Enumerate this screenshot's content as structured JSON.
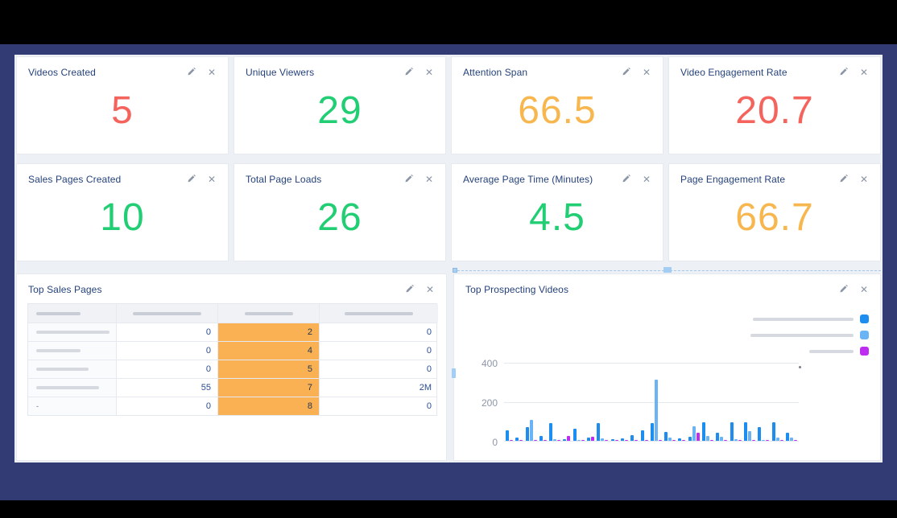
{
  "colors": {
    "red": "#f4635c",
    "green": "#21ce73",
    "orange": "#f7b64e",
    "title_navy": "#25427c",
    "highlight_orange": "#f9b153",
    "bar_blue": "#1d8df0",
    "bar_lightblue": "#6ab4f5",
    "bar_magenta": "#bf2cf1",
    "frame_navy": "#323b73",
    "page_bg": "#edf0f5"
  },
  "metric_cards": [
    {
      "title": "Videos Created",
      "value": "5",
      "value_color": "#f4635c"
    },
    {
      "title": "Unique Viewers",
      "value": "29",
      "value_color": "#21ce73"
    },
    {
      "title": "Attention Span",
      "value": "66.5",
      "value_color": "#f7b64e"
    },
    {
      "title": "Video Engagement Rate",
      "value": "20.7",
      "value_color": "#f4635c"
    },
    {
      "title": "Sales Pages Created",
      "value": "10",
      "value_color": "#21ce73"
    },
    {
      "title": "Total Page Loads",
      "value": "26",
      "value_color": "#21ce73"
    },
    {
      "title": "Average Page Time (Minutes)",
      "value": "4.5",
      "value_color": "#21ce73"
    },
    {
      "title": "Page Engagement Rate",
      "value": "66.7",
      "value_color": "#f7b64e"
    }
  ],
  "table_card": {
    "title": "Top Sales Pages",
    "header_redacted_bar_widths": [
      55,
      85,
      60,
      85
    ],
    "rows": [
      {
        "name_redacted_bar_width": 92,
        "name_text": "",
        "col2": "0",
        "col3": "2",
        "col4": "0"
      },
      {
        "name_redacted_bar_width": 55,
        "name_text": "",
        "col2": "0",
        "col3": "4",
        "col4": "0"
      },
      {
        "name_redacted_bar_width": 65,
        "name_text": "",
        "col2": "0",
        "col3": "5",
        "col4": "0"
      },
      {
        "name_redacted_bar_width": 78,
        "name_text": "",
        "col2": "55",
        "col3": "7",
        "col4": "2M"
      },
      {
        "name_redacted_bar_width": 0,
        "name_text": "-",
        "col2": "0",
        "col3": "8",
        "col4": "0"
      }
    ],
    "highlighted_column_index": 3,
    "highlight_color": "#f9b153"
  },
  "chart_card": {
    "title": "Top Prospecting Videos",
    "legend": [
      {
        "color": "#1d8df0",
        "label_redacted_bar_width": 125
      },
      {
        "color": "#6ab4f5",
        "label_redacted_bar_width": 128
      },
      {
        "color": "#bf2cf1",
        "label_redacted_bar_width": 55
      }
    ],
    "selected": true
  },
  "chart_data": {
    "type": "bar",
    "title": "Top Prospecting Videos",
    "xlabel": "",
    "ylabel": "",
    "ylim": [
      0,
      400
    ],
    "yticks": [
      0,
      200,
      400
    ],
    "grid": true,
    "legend_position": "top-right",
    "x_tick_labels_visible": false,
    "categories": [
      "1",
      "2",
      "3",
      "4",
      "5",
      "6",
      "7",
      "8",
      "9",
      "10",
      "11",
      "12",
      "13",
      "14",
      "15",
      "16",
      "17",
      "18",
      "19",
      "20",
      "21",
      "22",
      "23",
      "24"
    ],
    "series": [
      {
        "name": "",
        "color": "#1d8df0",
        "values": [
          55,
          18,
          70,
          25,
          90,
          8,
          60,
          18,
          90,
          8,
          14,
          30,
          55,
          90,
          45,
          12,
          20,
          95,
          40,
          95,
          95,
          70,
          95,
          40
        ]
      },
      {
        "name": "",
        "color": "#6ab4f5",
        "values": [
          0,
          0,
          105,
          0,
          8,
          0,
          6,
          0,
          12,
          0,
          0,
          0,
          0,
          310,
          18,
          0,
          75,
          25,
          22,
          8,
          50,
          4,
          15,
          15
        ]
      },
      {
        "name": "",
        "color": "#bf2cf1",
        "values": [
          4,
          4,
          4,
          4,
          4,
          24,
          4,
          20,
          4,
          4,
          4,
          4,
          4,
          4,
          4,
          4,
          40,
          4,
          4,
          4,
          4,
          6,
          4,
          4
        ]
      }
    ]
  }
}
